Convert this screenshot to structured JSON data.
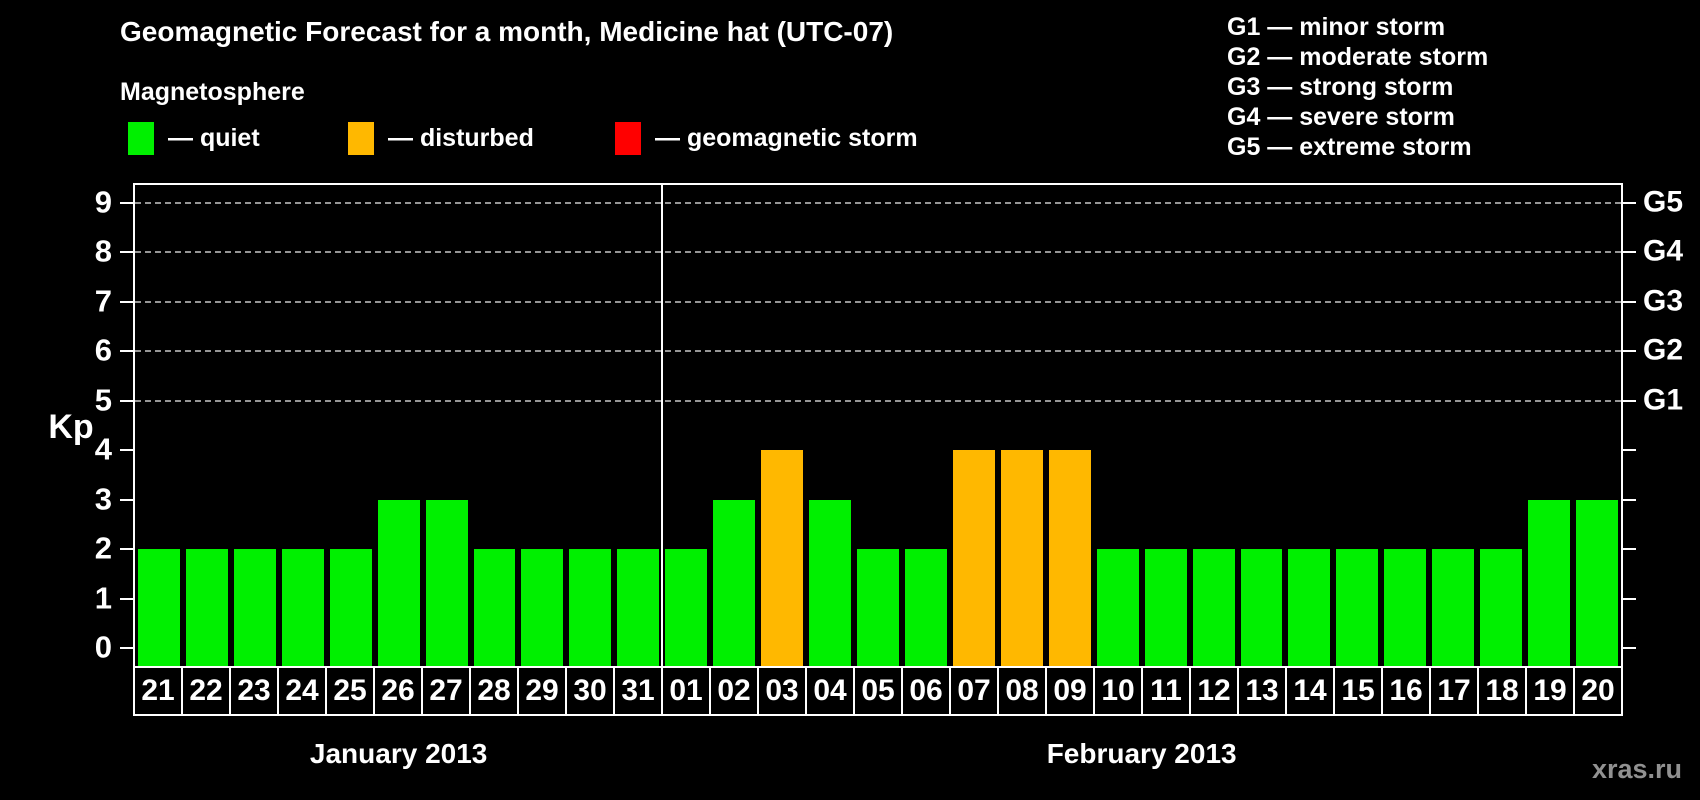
{
  "title": "Geomagnetic Forecast for a month, Medicine hat (UTC-07)",
  "magnetosphere_legend": {
    "heading": "Magnetosphere",
    "items": [
      {
        "name": "quiet",
        "label": "— quiet",
        "color": "#00f000"
      },
      {
        "name": "disturbed",
        "label": "— disturbed",
        "color": "#ffb800"
      },
      {
        "name": "storm",
        "label": "— geomagnetic storm",
        "color": "#ff0000"
      }
    ]
  },
  "g_scale_legend": [
    "G1 — minor storm",
    "G2 — moderate storm",
    "G3 — strong storm",
    "G4 — severe storm",
    "G5 — extreme storm"
  ],
  "watermark": "xras.ru",
  "chart_data": {
    "type": "bar",
    "title": "Geomagnetic Forecast for a month, Medicine hat (UTC-07)",
    "ylabel": "Kp",
    "ylim": [
      0,
      9
    ],
    "y_ticks": [
      0,
      1,
      2,
      3,
      4,
      5,
      6,
      7,
      8,
      9
    ],
    "gridlines_at": [
      5,
      6,
      7,
      8,
      9
    ],
    "grid": "dashed horizontal lines only at Kp 5-9",
    "legend_position": "top",
    "right_axis_labels": [
      {
        "kp": 5,
        "label": "G1"
      },
      {
        "kp": 6,
        "label": "G2"
      },
      {
        "kp": 7,
        "label": "G3"
      },
      {
        "kp": 8,
        "label": "G4"
      },
      {
        "kp": 9,
        "label": "G5"
      }
    ],
    "months": [
      {
        "label": "January 2013",
        "days": 11
      },
      {
        "label": "February 2013",
        "days": 20
      }
    ],
    "bars": [
      {
        "month": "January 2013",
        "day": "21",
        "kp": 2,
        "status": "quiet"
      },
      {
        "month": "January 2013",
        "day": "22",
        "kp": 2,
        "status": "quiet"
      },
      {
        "month": "January 2013",
        "day": "23",
        "kp": 2,
        "status": "quiet"
      },
      {
        "month": "January 2013",
        "day": "24",
        "kp": 2,
        "status": "quiet"
      },
      {
        "month": "January 2013",
        "day": "25",
        "kp": 2,
        "status": "quiet"
      },
      {
        "month": "January 2013",
        "day": "26",
        "kp": 3,
        "status": "quiet"
      },
      {
        "month": "January 2013",
        "day": "27",
        "kp": 3,
        "status": "quiet"
      },
      {
        "month": "January 2013",
        "day": "28",
        "kp": 2,
        "status": "quiet"
      },
      {
        "month": "January 2013",
        "day": "29",
        "kp": 2,
        "status": "quiet"
      },
      {
        "month": "January 2013",
        "day": "30",
        "kp": 2,
        "status": "quiet"
      },
      {
        "month": "January 2013",
        "day": "31",
        "kp": 2,
        "status": "quiet"
      },
      {
        "month": "February 2013",
        "day": "01",
        "kp": 2,
        "status": "quiet"
      },
      {
        "month": "February 2013",
        "day": "02",
        "kp": 3,
        "status": "quiet"
      },
      {
        "month": "February 2013",
        "day": "03",
        "kp": 4,
        "status": "disturbed"
      },
      {
        "month": "February 2013",
        "day": "04",
        "kp": 3,
        "status": "quiet"
      },
      {
        "month": "February 2013",
        "day": "05",
        "kp": 2,
        "status": "quiet"
      },
      {
        "month": "February 2013",
        "day": "06",
        "kp": 2,
        "status": "quiet"
      },
      {
        "month": "February 2013",
        "day": "07",
        "kp": 4,
        "status": "disturbed"
      },
      {
        "month": "February 2013",
        "day": "08",
        "kp": 4,
        "status": "disturbed"
      },
      {
        "month": "February 2013",
        "day": "09",
        "kp": 4,
        "status": "disturbed"
      },
      {
        "month": "February 2013",
        "day": "10",
        "kp": 2,
        "status": "quiet"
      },
      {
        "month": "February 2013",
        "day": "11",
        "kp": 2,
        "status": "quiet"
      },
      {
        "month": "February 2013",
        "day": "12",
        "kp": 2,
        "status": "quiet"
      },
      {
        "month": "February 2013",
        "day": "13",
        "kp": 2,
        "status": "quiet"
      },
      {
        "month": "February 2013",
        "day": "14",
        "kp": 2,
        "status": "quiet"
      },
      {
        "month": "February 2013",
        "day": "15",
        "kp": 2,
        "status": "quiet"
      },
      {
        "month": "February 2013",
        "day": "16",
        "kp": 2,
        "status": "quiet"
      },
      {
        "month": "February 2013",
        "day": "17",
        "kp": 2,
        "status": "quiet"
      },
      {
        "month": "February 2013",
        "day": "18",
        "kp": 2,
        "status": "quiet"
      },
      {
        "month": "February 2013",
        "day": "19",
        "kp": 3,
        "status": "quiet"
      },
      {
        "month": "February 2013",
        "day": "20",
        "kp": 3,
        "status": "quiet"
      }
    ]
  }
}
